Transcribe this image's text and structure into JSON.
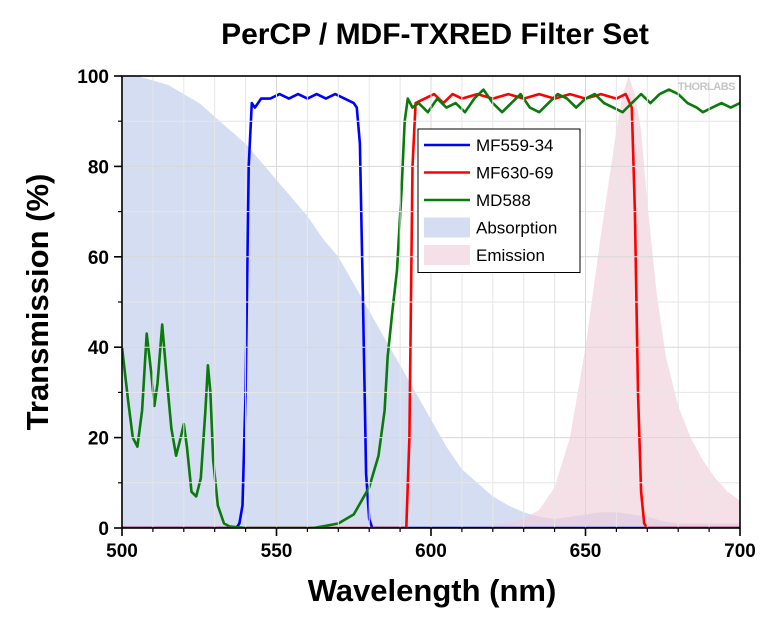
{
  "chart_data": {
    "type": "line",
    "title": "PerCP / MDF-TXRED Filter Set",
    "xlabel": "Wavelength (nm)",
    "ylabel": "Transmission (%)",
    "xlim": [
      500,
      700
    ],
    "ylim": [
      0,
      100
    ],
    "x_ticks": [
      500,
      550,
      600,
      650,
      700
    ],
    "y_ticks": [
      0,
      20,
      40,
      60,
      80,
      100
    ],
    "grid": true,
    "legend_position": "upper-center-right",
    "watermark": "THORLABS",
    "series": [
      {
        "name": "MF559-34",
        "kind": "line",
        "color": "#0000ff",
        "points": [
          [
            500,
            0
          ],
          [
            537,
            0
          ],
          [
            538,
            1
          ],
          [
            539,
            5
          ],
          [
            540,
            30
          ],
          [
            541,
            80
          ],
          [
            542,
            94
          ],
          [
            543,
            93
          ],
          [
            545,
            95
          ],
          [
            548,
            95
          ],
          [
            551,
            96
          ],
          [
            554,
            95
          ],
          [
            557,
            96
          ],
          [
            560,
            95
          ],
          [
            563,
            96
          ],
          [
            566,
            95
          ],
          [
            569,
            96
          ],
          [
            572,
            95
          ],
          [
            575,
            94
          ],
          [
            576,
            93
          ],
          [
            577,
            85
          ],
          [
            578,
            50
          ],
          [
            579,
            12
          ],
          [
            580,
            2
          ],
          [
            581,
            0
          ],
          [
            700,
            0
          ]
        ]
      },
      {
        "name": "MF630-69",
        "kind": "line",
        "color": "#ff0000",
        "points": [
          [
            500,
            0
          ],
          [
            592,
            0
          ],
          [
            593,
            20
          ],
          [
            594,
            80
          ],
          [
            595,
            94
          ],
          [
            598,
            95
          ],
          [
            601,
            96
          ],
          [
            604,
            94
          ],
          [
            607,
            96
          ],
          [
            610,
            95
          ],
          [
            615,
            96
          ],
          [
            620,
            95
          ],
          [
            625,
            96
          ],
          [
            630,
            95
          ],
          [
            635,
            96
          ],
          [
            640,
            95
          ],
          [
            645,
            96
          ],
          [
            650,
            95
          ],
          [
            655,
            96
          ],
          [
            660,
            95
          ],
          [
            663,
            96
          ],
          [
            665,
            93
          ],
          [
            666,
            70
          ],
          [
            667,
            30
          ],
          [
            668,
            8
          ],
          [
            669,
            1
          ],
          [
            670,
            0
          ],
          [
            700,
            0
          ]
        ]
      },
      {
        "name": "MD588",
        "kind": "line",
        "color": "#0a7a0a",
        "points": [
          [
            500,
            40
          ],
          [
            502,
            28
          ],
          [
            503.5,
            20
          ],
          [
            505,
            18
          ],
          [
            506.5,
            26
          ],
          [
            508,
            43
          ],
          [
            509.5,
            34
          ],
          [
            510.5,
            27
          ],
          [
            511.5,
            32
          ],
          [
            513,
            45
          ],
          [
            514.5,
            33
          ],
          [
            516,
            22
          ],
          [
            517.5,
            16
          ],
          [
            519,
            20
          ],
          [
            520,
            23
          ],
          [
            521,
            18
          ],
          [
            522.5,
            8
          ],
          [
            524,
            7
          ],
          [
            525.5,
            11
          ],
          [
            527,
            26
          ],
          [
            527.8,
            36
          ],
          [
            528.6,
            30
          ],
          [
            529.5,
            15
          ],
          [
            531,
            5
          ],
          [
            533,
            1
          ],
          [
            535,
            0.3
          ],
          [
            540,
            0
          ],
          [
            562,
            0
          ],
          [
            570,
            1
          ],
          [
            575,
            3
          ],
          [
            580,
            9
          ],
          [
            583,
            16
          ],
          [
            585,
            26
          ],
          [
            586,
            38
          ],
          [
            587.5,
            48
          ],
          [
            589,
            57
          ],
          [
            590.5,
            75
          ],
          [
            591.5,
            90
          ],
          [
            592.5,
            95
          ],
          [
            594,
            93
          ],
          [
            596,
            94
          ],
          [
            599,
            92
          ],
          [
            602,
            95
          ],
          [
            605,
            93
          ],
          [
            608,
            94
          ],
          [
            611,
            92
          ],
          [
            614,
            95
          ],
          [
            617,
            97
          ],
          [
            620,
            94
          ],
          [
            623,
            92
          ],
          [
            626,
            94
          ],
          [
            629,
            96
          ],
          [
            632,
            93
          ],
          [
            635,
            92
          ],
          [
            638,
            94
          ],
          [
            641,
            96
          ],
          [
            644,
            95
          ],
          [
            647,
            93
          ],
          [
            650,
            95
          ],
          [
            653,
            96
          ],
          [
            656,
            94
          ],
          [
            659,
            93
          ],
          [
            662,
            92
          ],
          [
            665,
            94
          ],
          [
            668,
            96
          ],
          [
            671,
            94
          ],
          [
            674,
            96
          ],
          [
            677,
            97
          ],
          [
            680,
            96
          ],
          [
            683,
            94
          ],
          [
            686,
            93
          ],
          [
            688,
            92
          ],
          [
            691,
            93
          ],
          [
            694,
            94
          ],
          [
            697,
            93
          ],
          [
            700,
            94
          ]
        ]
      },
      {
        "name": "Absorption",
        "kind": "area",
        "color": "#b8c7ea",
        "points": [
          [
            500,
            100
          ],
          [
            505,
            100
          ],
          [
            510,
            99
          ],
          [
            515,
            98
          ],
          [
            520,
            96
          ],
          [
            525,
            94
          ],
          [
            530,
            91
          ],
          [
            535,
            88
          ],
          [
            540,
            85
          ],
          [
            545,
            81
          ],
          [
            550,
            77
          ],
          [
            555,
            73
          ],
          [
            560,
            69
          ],
          [
            565,
            64
          ],
          [
            570,
            60
          ],
          [
            575,
            54
          ],
          [
            580,
            48
          ],
          [
            585,
            42
          ],
          [
            590,
            36
          ],
          [
            595,
            30
          ],
          [
            600,
            24
          ],
          [
            605,
            18
          ],
          [
            610,
            13
          ],
          [
            615,
            10
          ],
          [
            620,
            7
          ],
          [
            625,
            5
          ],
          [
            630,
            3.5
          ],
          [
            635,
            2.5
          ],
          [
            640,
            2
          ],
          [
            645,
            2.5
          ],
          [
            650,
            3
          ],
          [
            655,
            3.5
          ],
          [
            660,
            3.5
          ],
          [
            665,
            3
          ],
          [
            670,
            2.5
          ],
          [
            675,
            1.5
          ],
          [
            680,
            1
          ],
          [
            685,
            1
          ],
          [
            690,
            1
          ],
          [
            695,
            1
          ],
          [
            700,
            1
          ]
        ]
      },
      {
        "name": "Emission",
        "kind": "area",
        "color": "#f0cbd8",
        "points": [
          [
            500,
            0
          ],
          [
            600,
            0
          ],
          [
            610,
            0.2
          ],
          [
            620,
            0.6
          ],
          [
            625,
            1.2
          ],
          [
            630,
            2
          ],
          [
            635,
            4
          ],
          [
            640,
            9
          ],
          [
            645,
            20
          ],
          [
            650,
            40
          ],
          [
            655,
            65
          ],
          [
            660,
            88
          ],
          [
            662,
            96
          ],
          [
            664,
            100
          ],
          [
            666,
            96
          ],
          [
            668,
            88
          ],
          [
            670,
            72
          ],
          [
            673,
            52
          ],
          [
            676,
            38
          ],
          [
            680,
            27
          ],
          [
            684,
            20
          ],
          [
            688,
            15
          ],
          [
            692,
            11
          ],
          [
            696,
            8
          ],
          [
            700,
            6
          ]
        ]
      }
    ]
  }
}
